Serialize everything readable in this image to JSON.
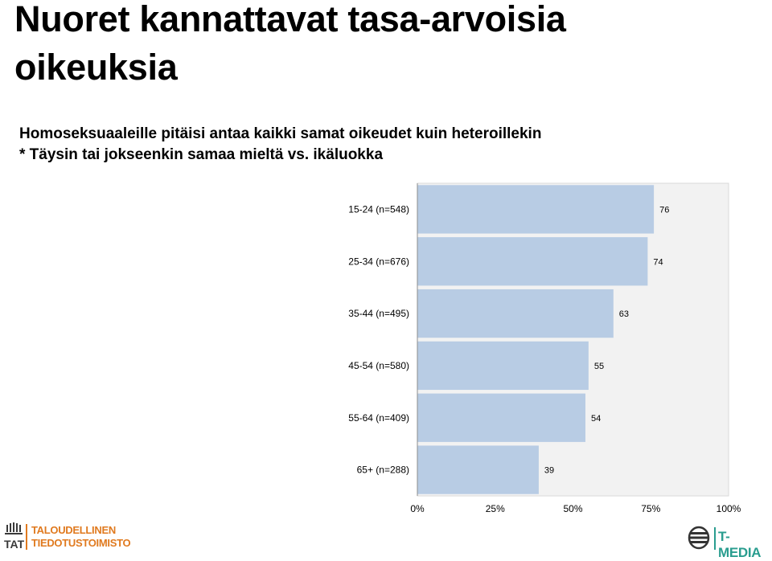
{
  "title": "Nuoret kannattavat tasa-arvoisia oikeuksia",
  "subtitle_line1": "Homoseksuaaleille pitäisi antaa kaikki samat oikeudet kuin heteroillekin",
  "subtitle_line2": "* Täysin tai jokseenkin samaa mieltä vs. ikäluokka",
  "chart_data": {
    "type": "bar",
    "orientation": "horizontal",
    "categories": [
      "15-24 (n=548)",
      "25-34 (n=676)",
      "35-44 (n=495)",
      "45-54 (n=580)",
      "55-64 (n=409)",
      "65+ (n=288)"
    ],
    "values": [
      76,
      74,
      63,
      55,
      54,
      39
    ],
    "xlim": [
      0,
      100
    ],
    "x_ticks": [
      "0%",
      "25%",
      "50%",
      "75%",
      "100%"
    ],
    "grid": false,
    "bar_color": "#b8cce4"
  },
  "logos": {
    "left_abbrev": "TAT",
    "left_line1": "TALOUDELLINEN",
    "left_line2": "TIEDOTUSTOIMISTO",
    "right_name": "T-MEDIA"
  }
}
